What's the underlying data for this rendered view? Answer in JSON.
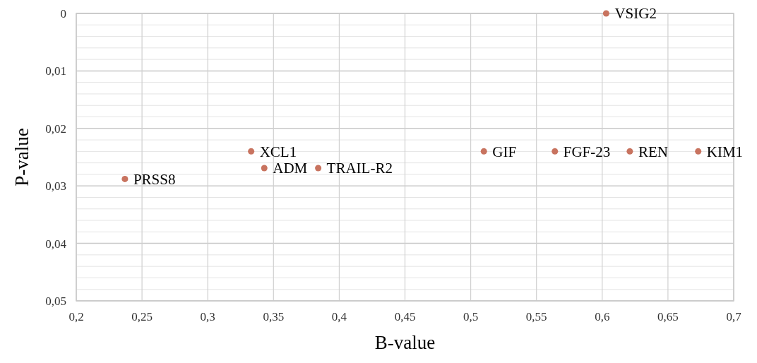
{
  "chart_data": {
    "type": "scatter",
    "xlabel": "B-value",
    "ylabel": "P-value",
    "x": [
      0.237,
      0.333,
      0.343,
      0.384,
      0.51,
      0.564,
      0.621,
      0.673,
      0.603
    ],
    "values": [
      0.0288,
      0.024,
      0.0269,
      0.0269,
      0.024,
      0.024,
      0.024,
      0.024,
      0
    ],
    "color": "#c8735f",
    "marker": "circle",
    "grid": true,
    "xlim": [
      0.2,
      0.7
    ],
    "ylim": [
      0.05,
      0
    ],
    "xticks": [
      {
        "value": 0.2,
        "label": "0,2"
      },
      {
        "value": 0.25,
        "label": "0,25"
      },
      {
        "value": 0.3,
        "label": "0,3"
      },
      {
        "value": 0.35,
        "label": "0,35"
      },
      {
        "value": 0.4,
        "label": "0,4"
      },
      {
        "value": 0.45,
        "label": "0,45"
      },
      {
        "value": 0.5,
        "label": "0,5"
      },
      {
        "value": 0.55,
        "label": "0,55"
      },
      {
        "value": 0.6,
        "label": "0,6"
      },
      {
        "value": 0.65,
        "label": "0,65"
      },
      {
        "value": 0.7,
        "label": "0,7"
      }
    ],
    "yticks": [
      0,
      {
        "value": 0.002,
        "label": null
      },
      {
        "value": 0.004,
        "label": null
      },
      {
        "value": 0.006,
        "label": null
      },
      {
        "value": 0.008,
        "label": null
      },
      {
        "value": 0.01,
        "label": "0,01"
      },
      {
        "value": 0.012,
        "label": null
      },
      {
        "value": 0.014,
        "label": null
      },
      {
        "value": 0.016,
        "label": null
      },
      {
        "value": 0.018,
        "label": null
      },
      {
        "value": 0.02,
        "label": "0,02"
      },
      {
        "value": 0.022,
        "label": null
      },
      {
        "value": 0.024,
        "label": null
      },
      {
        "value": 0.026,
        "label": null
      },
      {
        "value": 0.028,
        "label": null
      },
      {
        "value": 0.03,
        "label": "0,03"
      },
      {
        "value": 0.032,
        "label": null
      },
      {
        "value": 0.034,
        "label": null
      },
      {
        "value": 0.036,
        "label": null
      },
      {
        "value": 0.038,
        "label": null
      },
      {
        "value": 0.04,
        "label": "0,04"
      },
      {
        "value": 0.042,
        "label": null
      },
      {
        "value": 0.044,
        "label": null
      },
      {
        "value": 0.046,
        "label": null
      },
      {
        "value": 0.048,
        "label": null
      },
      {
        "value": 0.05,
        "label": "0,05"
      }
    ],
    "annotations": [
      {
        "text": "PRSS8",
        "x": 0.237,
        "y": 0.0288
      },
      {
        "text": "XCL1",
        "x": 0.333,
        "y": 0.024
      },
      {
        "text": "ADM",
        "x": 0.343,
        "y": 0.0269
      },
      {
        "text": "TRAIL-R2",
        "x": 0.384,
        "y": 0.0269
      },
      {
        "text": "GIF",
        "x": 0.51,
        "y": 0.024
      },
      {
        "text": "FGF-23",
        "x": 0.564,
        "y": 0.024
      },
      {
        "text": "REN",
        "x": 0.621,
        "y": 0.024
      },
      {
        "text": "KIM1",
        "x": 0.673,
        "y": 0.024
      },
      {
        "text": "VSIG2",
        "x": 0.603,
        "y": 0
      }
    ]
  }
}
